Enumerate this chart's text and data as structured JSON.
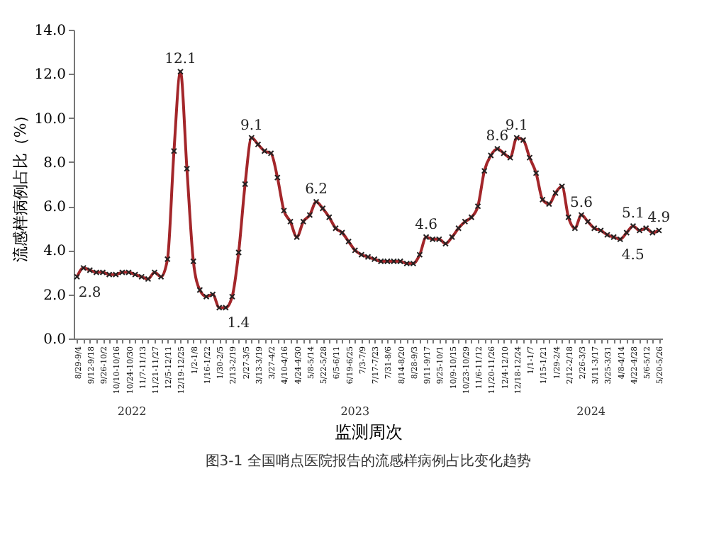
{
  "chart_data": {
    "type": "line",
    "title": "图3-1 全国哨点医院报告的流感样病例占比变化趋势",
    "xlabel": "监测周次",
    "ylabel": "流感样病例占比（%）",
    "categories": [
      "8/29-9/4",
      null,
      "9/12-9/18",
      null,
      "9/26-10/2",
      null,
      "10/10-10/16",
      null,
      "10/24-10/30",
      null,
      "11/7-11/13",
      null,
      "11/21-11/27",
      null,
      "12/5-12/11",
      null,
      "12/19-12/25",
      null,
      "1/2-1/8",
      null,
      "1/16-1/22",
      null,
      "1/30-2/5",
      null,
      "2/13-2/19",
      null,
      "2/27-3/5",
      null,
      "3/13-3/19",
      null,
      "3/27-4/2",
      null,
      "4/10-4/16",
      null,
      "4/24-4/30",
      null,
      "5/8-5/14",
      null,
      "5/22-5/28",
      null,
      "6/5-6/11",
      null,
      "6/19-6/25",
      null,
      "7/3-7/9",
      null,
      "7/17-7/23",
      null,
      "7/31-8/6",
      null,
      "8/14-8/20",
      null,
      "8/28-9/3",
      null,
      "9/11-9/17",
      null,
      "9/25-10/1",
      null,
      "10/9-10/15",
      null,
      "10/23-10/29",
      null,
      "11/6-11/12",
      null,
      "11/20-11/26",
      null,
      "12/4-12/10",
      null,
      "12/18-12/24",
      null,
      "1/1-1/7",
      null,
      "1/15-1/21",
      null,
      "1/29-2/4",
      null,
      "2/12-2/18",
      null,
      "2/26-3/3",
      null,
      "3/11-3/17",
      null,
      "3/25-3/31",
      null,
      "4/8-4/14",
      null,
      "4/22-4/28",
      null,
      "5/6-5/12",
      null,
      "5/20-5/26"
    ],
    "series": [
      {
        "color": "#a3262a",
        "values": [
          2.8,
          3.2,
          3.1,
          3.0,
          3.0,
          2.9,
          2.9,
          3.0,
          3.0,
          2.9,
          2.8,
          2.7,
          3.0,
          2.8,
          3.6,
          8.5,
          12.1,
          7.7,
          3.5,
          2.2,
          1.9,
          2.0,
          1.4,
          1.4,
          1.9,
          3.9,
          7.0,
          9.1,
          8.8,
          8.5,
          8.4,
          7.3,
          5.8,
          5.3,
          4.6,
          5.3,
          5.6,
          6.2,
          5.9,
          5.5,
          5.0,
          4.8,
          4.4,
          4.0,
          3.8,
          3.7,
          3.6,
          3.5,
          3.5,
          3.5,
          3.5,
          3.4,
          3.4,
          3.8,
          4.6,
          4.5,
          4.5,
          4.3,
          4.6,
          5.0,
          5.3,
          5.5,
          6.0,
          7.6,
          8.3,
          8.6,
          8.4,
          8.2,
          9.1,
          9.0,
          8.2,
          7.5,
          6.3,
          6.1,
          6.6,
          6.9,
          5.5,
          5.0,
          5.6,
          5.3,
          5.0,
          4.9,
          4.7,
          4.6,
          4.5,
          4.8,
          5.1,
          4.9,
          5.0,
          4.8,
          4.9
        ],
        "value_labels": [
          "2.8",
          null,
          null,
          null,
          null,
          null,
          null,
          null,
          null,
          null,
          null,
          null,
          null,
          null,
          null,
          null,
          "12.1",
          null,
          null,
          null,
          null,
          null,
          null,
          "1.4",
          null,
          null,
          null,
          "9.1",
          null,
          null,
          null,
          null,
          null,
          null,
          null,
          null,
          null,
          "6.2",
          null,
          null,
          null,
          null,
          null,
          null,
          null,
          null,
          null,
          null,
          null,
          null,
          null,
          null,
          null,
          null,
          "4.6",
          null,
          null,
          null,
          null,
          null,
          null,
          null,
          null,
          null,
          null,
          "8.6",
          null,
          null,
          "9.1",
          null,
          null,
          null,
          null,
          null,
          null,
          null,
          null,
          null,
          "5.6",
          null,
          null,
          null,
          null,
          null,
          "4.5",
          null,
          "5.1",
          null,
          null,
          null,
          "4.9"
        ]
      }
    ],
    "ylim": [
      0,
      14
    ],
    "yticks": [
      {
        "value": 0,
        "label": "0.0"
      },
      {
        "value": 2,
        "label": "2.0"
      },
      {
        "value": 4,
        "label": "4.0"
      },
      {
        "value": 6,
        "label": "6.0"
      },
      {
        "value": 8,
        "label": "8.0"
      },
      {
        "value": 10,
        "label": "10.0"
      },
      {
        "value": 12,
        "label": "12.0"
      },
      {
        "value": 14,
        "label": "14.0"
      }
    ],
    "annotations": [
      "2022",
      "2023",
      "2024"
    ],
    "marker": "cross",
    "line_style": "solid"
  }
}
